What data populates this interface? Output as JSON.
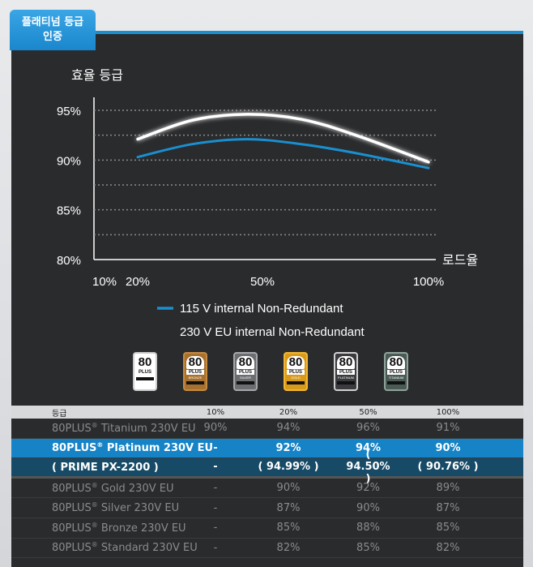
{
  "tag": {
    "line1": "플래티넘 등급",
    "line2": "인증"
  },
  "chart_data": {
    "type": "line",
    "title": "효율 등급",
    "xlabel": "로드율",
    "ylabel": "",
    "ylim": [
      80,
      95
    ],
    "y_ticks": [
      "95%",
      "90%",
      "85%",
      "80%"
    ],
    "x_tick_labels": [
      "10%",
      "20%",
      "50%",
      "100%"
    ],
    "x": [
      20,
      50,
      100
    ],
    "series": [
      {
        "name": "115 V internal Non-Redundant",
        "x": [
          20,
          35,
          50,
          65,
          80,
          100
        ],
        "values": [
          90.3,
          91.6,
          92.1,
          91.6,
          90.7,
          89.2
        ],
        "color": "#1a8fd0"
      },
      {
        "name": "230 V EU internal Non-Redundant",
        "x": [
          20,
          35,
          50,
          65,
          80,
          100
        ],
        "values": [
          92.1,
          94.0,
          94.6,
          94.1,
          92.5,
          89.8
        ],
        "color": "#ffffff"
      }
    ],
    "grid": true,
    "legend_position": "bottom"
  },
  "badges": [
    {
      "num": "80",
      "plus": "PLUS",
      "level": "",
      "bg": "#ffffff",
      "border": "#cccccc",
      "label": "80-plus-standard-badge"
    },
    {
      "num": "80",
      "plus": "PLUS",
      "level": "BRONZE",
      "bg": "#a8702e",
      "border": "#c68a3f",
      "label": "80-plus-bronze-badge"
    },
    {
      "num": "80",
      "plus": "PLUS",
      "level": "SILVER",
      "bg": "#6b6d70",
      "border": "#a5a7aa",
      "label": "80-plus-silver-badge"
    },
    {
      "num": "80",
      "plus": "PLUS",
      "level": "GOLD",
      "bg": "#d99a1a",
      "border": "#f2b630",
      "label": "80-plus-gold-badge"
    },
    {
      "num": "80",
      "plus": "PLUS",
      "level": "PLATINUM",
      "bg": "#3a3b3e",
      "border": "#d0d0d0",
      "label": "80-plus-platinum-badge"
    },
    {
      "num": "80",
      "plus": "PLUS",
      "level": "TITANIUM",
      "bg": "#4a5a55",
      "border": "#8fa39b",
      "label": "80-plus-titanium-badge"
    }
  ],
  "table": {
    "headers": [
      "등급",
      "10%",
      "20%",
      "50%",
      "100%"
    ],
    "rows": [
      {
        "name": "80PLUS",
        "sup": "®",
        "rest": " Titanium 230V EU",
        "v10": "90%",
        "v20": "94%",
        "v50": "96%",
        "v100": "91%",
        "style": ""
      },
      {
        "name": "80PLUS",
        "sup": "®",
        "rest": " Platinum 230V EU",
        "v10": "-",
        "v20": "92%",
        "v50": "94%",
        "v100": "90%",
        "style": "hl"
      },
      {
        "name": "( PRIME PX-2200 )",
        "sup": "",
        "rest": "",
        "v10": "-",
        "v20": "( 94.99% )",
        "v50": "( 94.50% )",
        "v100": "( 90.76% )",
        "style": "prime split"
      },
      {
        "name": "80PLUS",
        "sup": "®",
        "rest": " Gold 230V EU",
        "v10": "-",
        "v20": "90%",
        "v50": "92%",
        "v100": "89%",
        "style": ""
      },
      {
        "name": "80PLUS",
        "sup": "®",
        "rest": " Silver 230V EU",
        "v10": "-",
        "v20": "87%",
        "v50": "90%",
        "v100": "87%",
        "style": ""
      },
      {
        "name": "80PLUS",
        "sup": "®",
        "rest": " Bronze 230V EU",
        "v10": "-",
        "v20": "85%",
        "v50": "88%",
        "v100": "85%",
        "style": ""
      },
      {
        "name": "80PLUS",
        "sup": "®",
        "rest": " Standard 230V EU",
        "v10": "-",
        "v20": "82%",
        "v50": "85%",
        "v100": "82%",
        "style": ""
      }
    ]
  }
}
